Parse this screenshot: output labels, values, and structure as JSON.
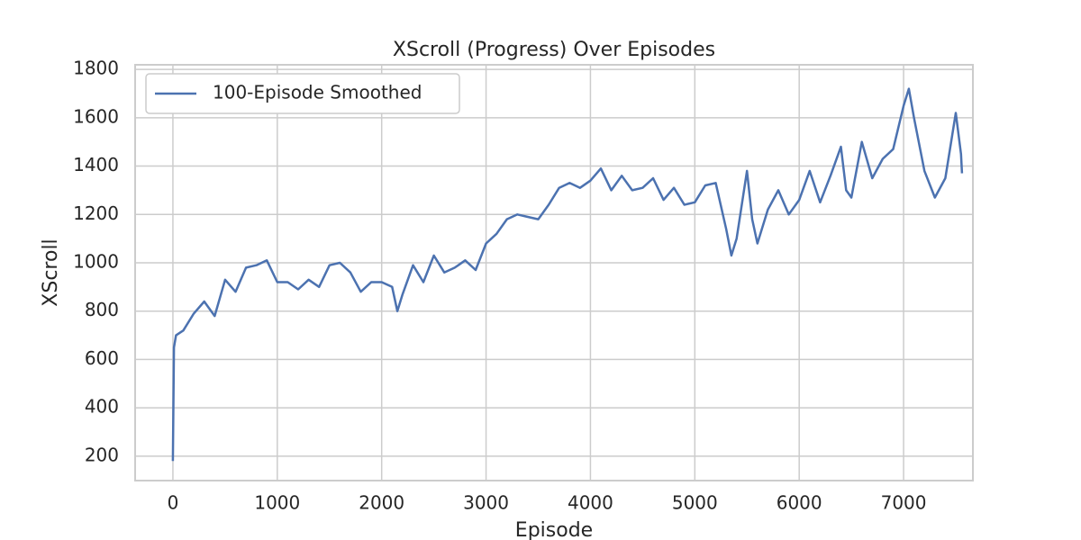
{
  "chart_data": {
    "type": "line",
    "title": "XScroll (Progress) Over Episodes",
    "xlabel": "Episode",
    "ylabel": "XScroll",
    "x": [
      0,
      10,
      30,
      100,
      200,
      300,
      400,
      500,
      600,
      700,
      800,
      900,
      1000,
      1100,
      1200,
      1300,
      1400,
      1500,
      1600,
      1700,
      1800,
      1900,
      2000,
      2100,
      2150,
      2200,
      2300,
      2400,
      2500,
      2600,
      2700,
      2800,
      2900,
      3000,
      3100,
      3200,
      3300,
      3400,
      3500,
      3600,
      3700,
      3800,
      3900,
      4000,
      4100,
      4200,
      4300,
      4400,
      4500,
      4600,
      4700,
      4800,
      4900,
      5000,
      5100,
      5200,
      5300,
      5350,
      5400,
      5500,
      5550,
      5600,
      5700,
      5800,
      5900,
      6000,
      6100,
      6200,
      6300,
      6400,
      6450,
      6500,
      6600,
      6700,
      6800,
      6900,
      7000,
      7050,
      7100,
      7200,
      7300,
      7400,
      7500,
      7550,
      7560
    ],
    "series": [
      {
        "name": "100-Episode Smoothed",
        "color": "#4c72b0",
        "values": [
          180,
          650,
          700,
          720,
          790,
          840,
          780,
          930,
          880,
          980,
          990,
          1010,
          920,
          920,
          890,
          930,
          900,
          990,
          1000,
          960,
          880,
          920,
          920,
          900,
          800,
          870,
          990,
          920,
          1030,
          960,
          980,
          1010,
          970,
          1080,
          1120,
          1180,
          1200,
          1190,
          1180,
          1240,
          1310,
          1330,
          1310,
          1340,
          1390,
          1300,
          1360,
          1300,
          1310,
          1350,
          1260,
          1310,
          1240,
          1250,
          1320,
          1330,
          1140,
          1030,
          1100,
          1380,
          1180,
          1080,
          1220,
          1300,
          1200,
          1260,
          1380,
          1250,
          1360,
          1480,
          1300,
          1270,
          1500,
          1350,
          1430,
          1470,
          1650,
          1720,
          1600,
          1380,
          1270,
          1350,
          1620,
          1450,
          1370
        ]
      }
    ],
    "xlim": [
      -362,
      7664
    ],
    "ylim": [
      99,
      1819
    ],
    "xticks": [
      0,
      1000,
      2000,
      3000,
      4000,
      5000,
      6000,
      7000
    ],
    "yticks": [
      200,
      400,
      600,
      800,
      1000,
      1200,
      1400,
      1600,
      1800
    ],
    "grid": true,
    "legend": "upper left"
  }
}
